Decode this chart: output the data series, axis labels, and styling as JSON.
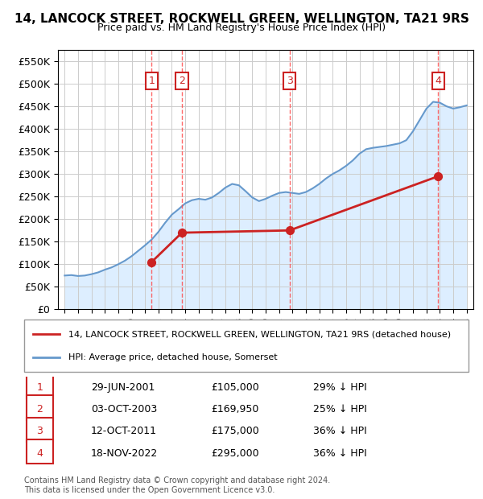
{
  "title": "14, LANCOCK STREET, ROCKWELL GREEN, WELLINGTON, TA21 9RS",
  "subtitle": "Price paid vs. HM Land Registry's House Price Index (HPI)",
  "ylim": [
    0,
    575000
  ],
  "yticks": [
    0,
    50000,
    100000,
    150000,
    200000,
    250000,
    300000,
    350000,
    400000,
    450000,
    500000,
    550000
  ],
  "ytick_labels": [
    "£0",
    "£50K",
    "£100K",
    "£150K",
    "£200K",
    "£250K",
    "£300K",
    "£350K",
    "£400K",
    "£450K",
    "£500K",
    "£550K"
  ],
  "xlim": [
    1994.5,
    2025.5
  ],
  "hpi_years": [
    1995,
    1995.5,
    1996,
    1996.5,
    1997,
    1997.5,
    1998,
    1998.5,
    1999,
    1999.5,
    2000,
    2000.5,
    2001,
    2001.5,
    2002,
    2002.5,
    2003,
    2003.5,
    2004,
    2004.5,
    2005,
    2005.5,
    2006,
    2006.5,
    2007,
    2007.5,
    2008,
    2008.5,
    2009,
    2009.5,
    2010,
    2010.5,
    2011,
    2011.5,
    2012,
    2012.5,
    2013,
    2013.5,
    2014,
    2014.5,
    2015,
    2015.5,
    2016,
    2016.5,
    2017,
    2017.5,
    2018,
    2018.5,
    2019,
    2019.5,
    2020,
    2020.5,
    2021,
    2021.5,
    2022,
    2022.5,
    2023,
    2023.5,
    2024,
    2024.5,
    2025
  ],
  "hpi_values": [
    75000,
    76000,
    74000,
    75000,
    78000,
    82000,
    88000,
    93000,
    100000,
    108000,
    118000,
    130000,
    142000,
    155000,
    172000,
    192000,
    210000,
    222000,
    235000,
    242000,
    245000,
    243000,
    248000,
    258000,
    270000,
    278000,
    275000,
    262000,
    248000,
    240000,
    245000,
    252000,
    258000,
    260000,
    258000,
    256000,
    260000,
    268000,
    278000,
    290000,
    300000,
    308000,
    318000,
    330000,
    345000,
    355000,
    358000,
    360000,
    362000,
    365000,
    368000,
    375000,
    395000,
    420000,
    445000,
    460000,
    458000,
    450000,
    445000,
    448000,
    452000
  ],
  "sale_years": [
    2001.49,
    2003.75,
    2011.78,
    2022.88
  ],
  "sale_prices": [
    105000,
    169950,
    175000,
    295000
  ],
  "sale_labels": [
    "1",
    "2",
    "3",
    "4"
  ],
  "sale_dates": [
    "29-JUN-2001",
    "03-OCT-2003",
    "12-OCT-2011",
    "18-NOV-2022"
  ],
  "sale_hpi_pct": [
    "29% ↓ HPI",
    "25% ↓ HPI",
    "36% ↓ HPI",
    "36% ↓ HPI"
  ],
  "vline_color": "#ff4444",
  "vline_style": "--",
  "hpi_line_color": "#6699cc",
  "hpi_fill_color": "#ddeeff",
  "sale_line_color": "#cc2222",
  "sale_dot_color": "#cc2222",
  "marker_box_color": "#cc2222",
  "grid_color": "#cccccc",
  "bg_color": "#ffffff",
  "legend_label_hpi": "HPI: Average price, detached house, Somerset",
  "legend_label_sale": "14, LANCOCK STREET, ROCKWELL GREEN, WELLINGTON, TA21 9RS (detached house)",
  "footer": "Contains HM Land Registry data © Crown copyright and database right 2024.\nThis data is licensed under the Open Government Licence v3.0.",
  "table_rows": [
    [
      "1",
      "29-JUN-2001",
      "£105,000",
      "29% ↓ HPI"
    ],
    [
      "2",
      "03-OCT-2003",
      "£169,950",
      "25% ↓ HPI"
    ],
    [
      "3",
      "12-OCT-2011",
      "£175,000",
      "36% ↓ HPI"
    ],
    [
      "4",
      "18-NOV-2022",
      "£295,000",
      "36% ↓ HPI"
    ]
  ]
}
